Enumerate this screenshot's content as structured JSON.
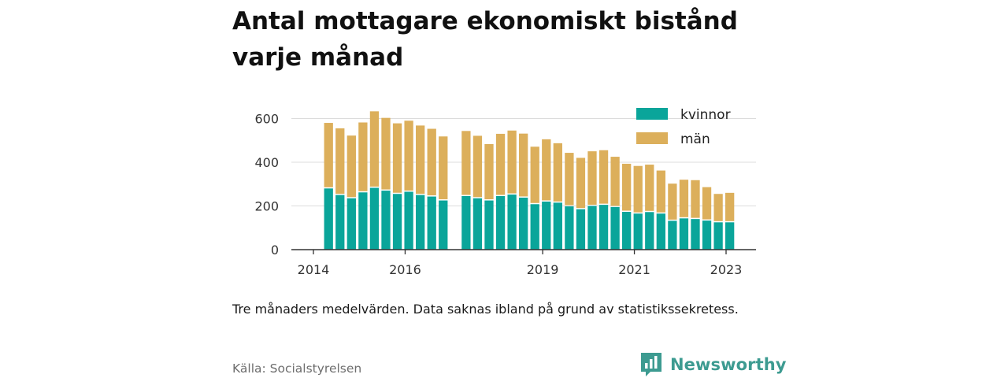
{
  "title": "Antal mottagare ekonomiskt bistånd varje månad",
  "note": "Tre månaders medelvärden. Data saknas ibland på grund av statistikssekretess.",
  "source": "Källa: Socialstyrelsen",
  "brand": {
    "name": "Newsworthy",
    "icon": "newsworthy-logo-icon",
    "color": "#3d9b91"
  },
  "chart_data": {
    "type": "bar",
    "stacked": true,
    "x_unit": "year",
    "xlim": [
      2014,
      2023.5
    ],
    "ylim": [
      0,
      700
    ],
    "yticks": [
      0,
      200,
      400,
      600
    ],
    "xticks": [
      {
        "value": 2014,
        "label": "2014"
      },
      {
        "value": 2016,
        "label": "2016"
      },
      {
        "value": 2019,
        "label": "2019"
      },
      {
        "value": 2021,
        "label": "2021"
      },
      {
        "value": 2023,
        "label": "2023"
      }
    ],
    "grid": true,
    "legend_position": "top-right",
    "x": [
      2014.33,
      2014.58,
      2014.83,
      2015.08,
      2015.33,
      2015.58,
      2015.83,
      2016.08,
      2016.33,
      2016.58,
      2016.83,
      2017.33,
      2017.58,
      2017.83,
      2018.08,
      2018.33,
      2018.58,
      2018.83,
      2019.08,
      2019.33,
      2019.58,
      2019.83,
      2020.08,
      2020.33,
      2020.58,
      2020.83,
      2021.08,
      2021.33,
      2021.58,
      2021.83,
      2022.08,
      2022.33,
      2022.58,
      2022.83,
      2023.08
    ],
    "series": [
      {
        "name": "kvinnor",
        "color": "#0aa59a",
        "values": [
          280,
          250,
          235,
          262,
          283,
          270,
          255,
          265,
          250,
          243,
          225,
          245,
          235,
          225,
          245,
          252,
          238,
          208,
          220,
          215,
          198,
          185,
          200,
          205,
          195,
          173,
          165,
          172,
          165,
          132,
          143,
          140,
          133,
          125,
          125
        ]
      },
      {
        "name": "män",
        "color": "#dcaf5b",
        "values": [
          300,
          305,
          287,
          320,
          350,
          333,
          323,
          325,
          318,
          310,
          293,
          298,
          286,
          258,
          285,
          293,
          293,
          263,
          285,
          272,
          245,
          235,
          250,
          250,
          230,
          220,
          218,
          217,
          197,
          170,
          177,
          178,
          153,
          130,
          135
        ]
      }
    ]
  }
}
